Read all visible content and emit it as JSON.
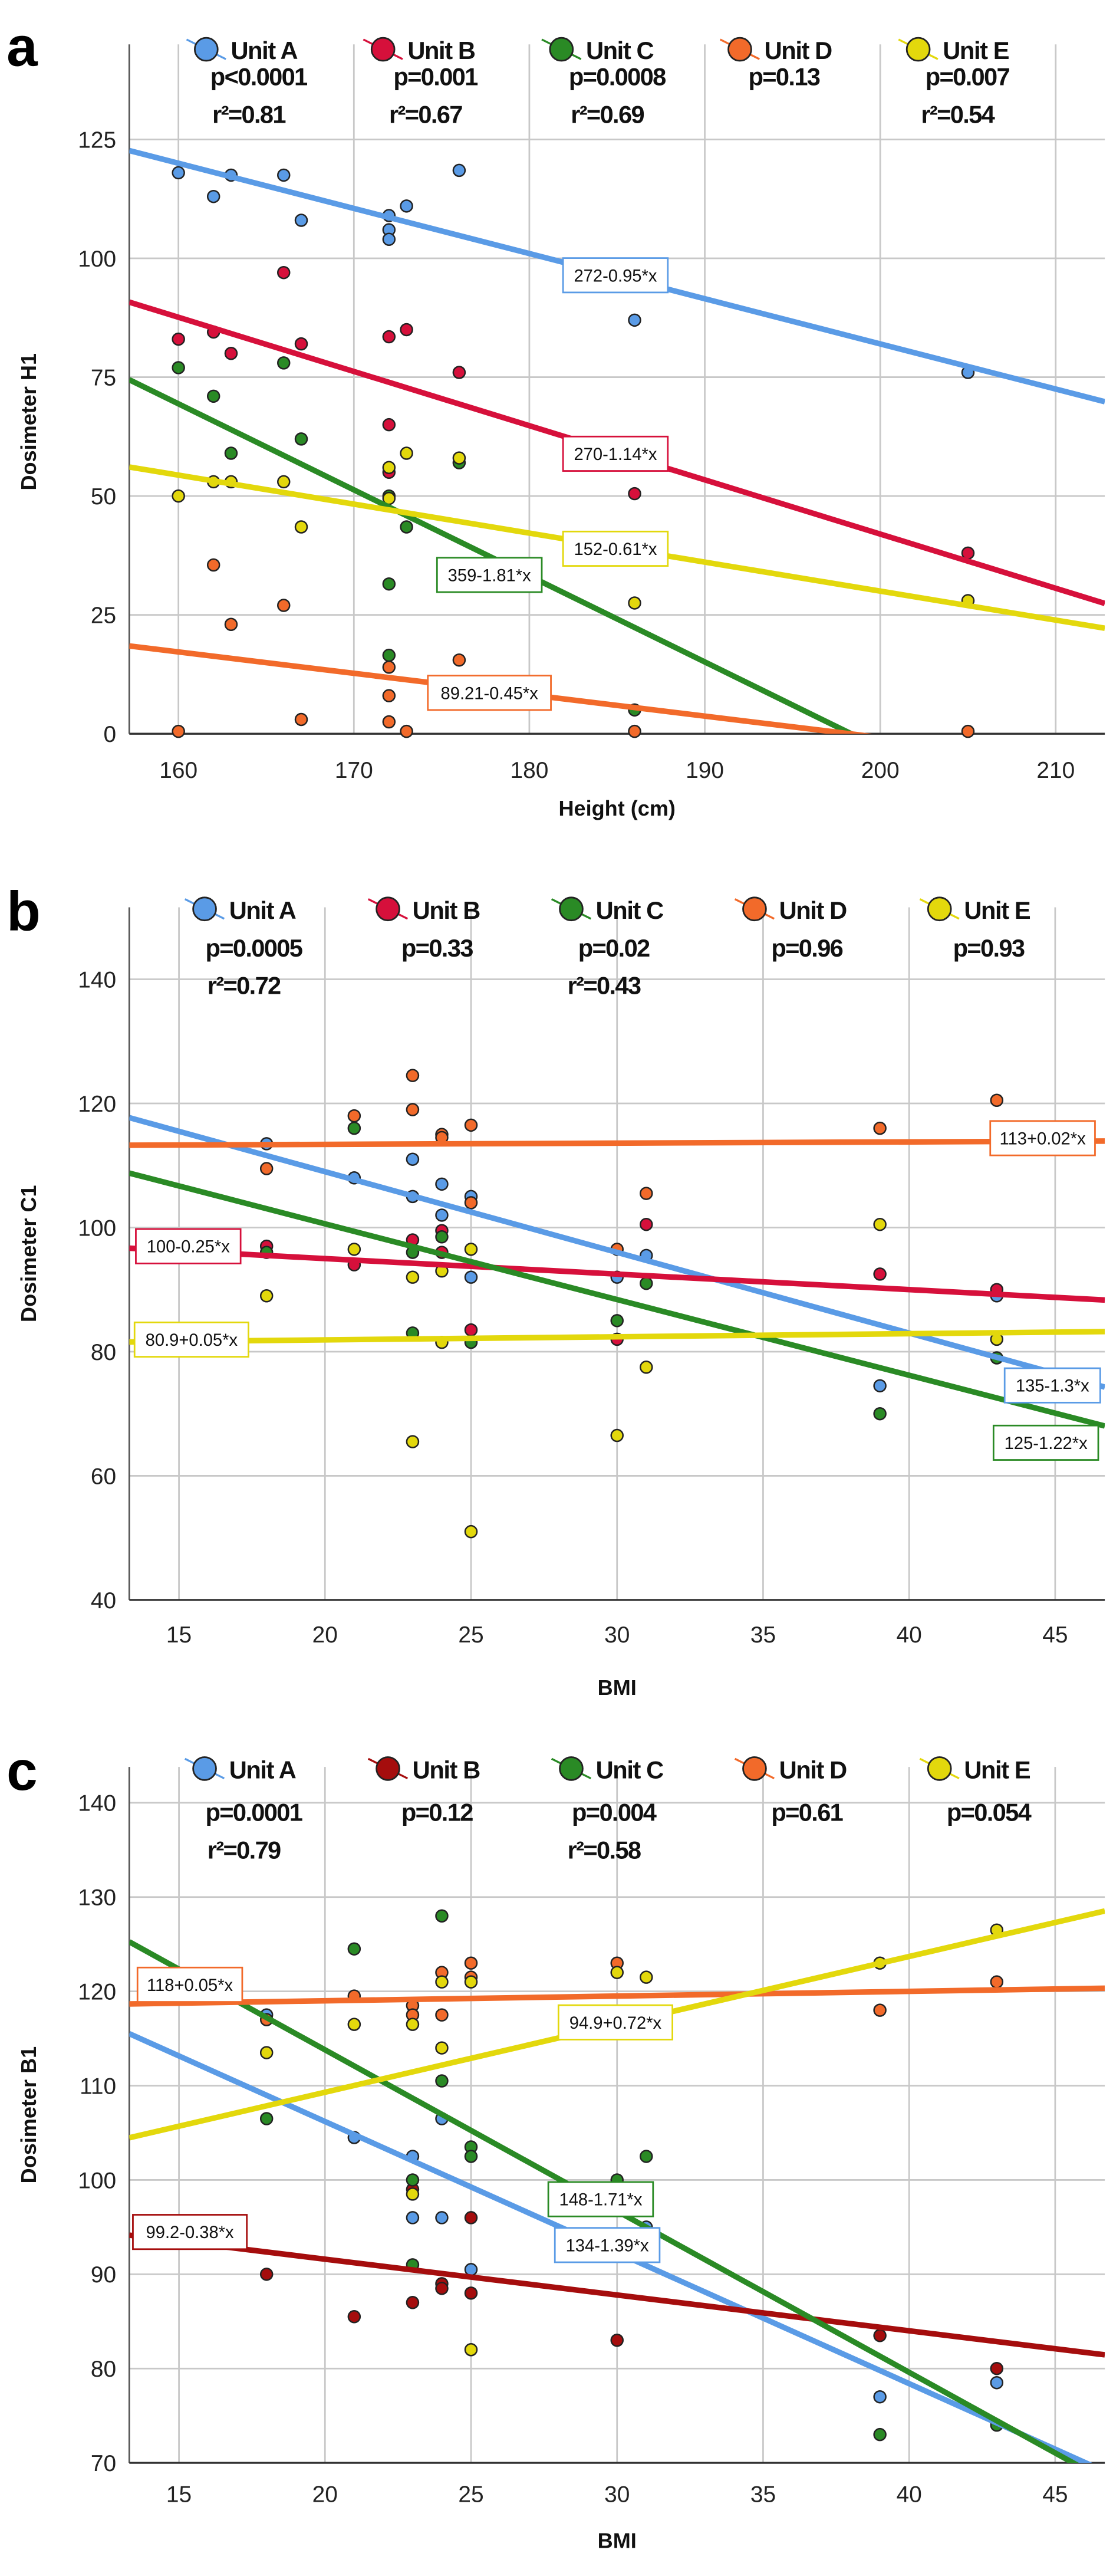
{
  "chart_data": [
    {
      "type": "scatter",
      "panel_label": "a",
      "xlabel": "Height (cm)",
      "ylabel": "Dosimeter H1",
      "xlim": [
        157.2,
        212.8
      ],
      "ylim": [
        0,
        145
      ],
      "xticks": [
        160,
        170,
        180,
        190,
        200,
        210
      ],
      "yticks": [
        0,
        25,
        50,
        75,
        100,
        125
      ],
      "grid": true,
      "legend_position": "top",
      "series": [
        {
          "name": "Unit A",
          "color": "#5a9be6",
          "p": "p<0.0001",
          "r2": "r²=0.81",
          "fit_label": "272-0.95*x",
          "intercept": 272,
          "slope": -0.95,
          "points": [
            [
              160,
              118
            ],
            [
              162,
              113
            ],
            [
              163,
              117.5
            ],
            [
              166,
              117.5
            ],
            [
              167,
              108
            ],
            [
              172,
              109
            ],
            [
              172,
              106
            ],
            [
              172,
              104
            ],
            [
              173,
              111
            ],
            [
              176,
              118.5
            ],
            [
              186,
              87
            ],
            [
              205,
              76
            ]
          ]
        },
        {
          "name": "Unit B",
          "color": "#d6103b",
          "p": "p=0.001",
          "r2": "r²=0.67",
          "fit_label": "270-1.14*x",
          "intercept": 270,
          "slope": -1.14,
          "points": [
            [
              160,
              83
            ],
            [
              162,
              84.5
            ],
            [
              163,
              80
            ],
            [
              166,
              97
            ],
            [
              167,
              82
            ],
            [
              172,
              83.5
            ],
            [
              172,
              65
            ],
            [
              172,
              55
            ],
            [
              173,
              85
            ],
            [
              176,
              76
            ],
            [
              186,
              50.5
            ],
            [
              205,
              38
            ]
          ]
        },
        {
          "name": "Unit C",
          "color": "#2a8a25",
          "p": "p=0.0008",
          "r2": "r²=0.69",
          "fit_label": "359-1.81*x",
          "intercept": 359,
          "slope": -1.81,
          "points": [
            [
              160,
              77
            ],
            [
              162,
              71
            ],
            [
              163,
              59
            ],
            [
              166,
              78
            ],
            [
              167,
              62
            ],
            [
              172,
              50
            ],
            [
              172,
              31.5
            ],
            [
              172,
              16.5
            ],
            [
              173,
              43.5
            ],
            [
              176,
              57
            ],
            [
              186,
              5
            ]
          ]
        },
        {
          "name": "Unit D",
          "color": "#f26a2a",
          "p": "p=0.13",
          "r2": "",
          "fit_label": "89.21-0.45*x",
          "intercept": 89.21,
          "slope": -0.45,
          "points": [
            [
              160,
              0.5
            ],
            [
              162,
              35.5
            ],
            [
              163,
              23
            ],
            [
              166,
              27
            ],
            [
              167,
              3
            ],
            [
              172,
              14
            ],
            [
              172,
              8
            ],
            [
              172,
              2.5
            ],
            [
              173,
              0.5
            ],
            [
              176,
              15.5
            ],
            [
              186,
              0.5
            ],
            [
              205,
              0.5
            ]
          ]
        },
        {
          "name": "Unit E",
          "color": "#e3d80c",
          "p": "p=0.007",
          "r2": "r²=0.54",
          "fit_label": "152-0.61*x",
          "intercept": 152,
          "slope": -0.61,
          "points": [
            [
              160,
              50
            ],
            [
              162,
              53
            ],
            [
              163,
              53
            ],
            [
              166,
              53
            ],
            [
              167,
              43.5
            ],
            [
              172,
              56
            ],
            [
              172,
              49.5
            ],
            [
              173,
              59
            ],
            [
              176,
              58
            ],
            [
              186,
              27.5
            ],
            [
              205,
              28
            ]
          ]
        }
      ]
    },
    {
      "type": "scatter",
      "panel_label": "b",
      "xlabel": "BMI",
      "ylabel": "Dosimeter C1",
      "xlim": [
        13.3,
        46.7
      ],
      "ylim": [
        40,
        151.6
      ],
      "xticks": [
        15,
        20,
        25,
        30,
        35,
        40,
        45
      ],
      "yticks": [
        40,
        60,
        80,
        100,
        120,
        140
      ],
      "grid": true,
      "legend_position": "top",
      "series": [
        {
          "name": "Unit A",
          "color": "#5a9be6",
          "p": "p=0.0005",
          "r2": "r²=0.72",
          "fit_label": "135-1.3*x",
          "intercept": 135,
          "slope": -1.3,
          "points": [
            [
              18,
              113.5
            ],
            [
              21,
              108
            ],
            [
              23,
              111
            ],
            [
              23,
              105
            ],
            [
              24,
              107
            ],
            [
              24,
              102
            ],
            [
              25,
              105
            ],
            [
              25,
              92
            ],
            [
              30,
              92
            ],
            [
              31,
              95.5
            ],
            [
              39,
              74.5
            ],
            [
              43,
              89
            ]
          ]
        },
        {
          "name": "Unit B",
          "color": "#d6103b",
          "p": "p=0.33",
          "r2": "",
          "fit_label": "100-0.25*x",
          "intercept": 100,
          "slope": -0.25,
          "points": [
            [
              18,
              97
            ],
            [
              21,
              94
            ],
            [
              23,
              98
            ],
            [
              24,
              99.5
            ],
            [
              24,
              96
            ],
            [
              25,
              83.5
            ],
            [
              30,
              82
            ],
            [
              31,
              100.5
            ],
            [
              39,
              92.5
            ],
            [
              43,
              90
            ]
          ]
        },
        {
          "name": "Unit C",
          "color": "#2a8a25",
          "p": "p=0.02",
          "r2": "r²=0.43",
          "fit_label": "125-1.22*x",
          "intercept": 125,
          "slope": -1.22,
          "points": [
            [
              18,
              96
            ],
            [
              21,
              116
            ],
            [
              23,
              83
            ],
            [
              23,
              96
            ],
            [
              24,
              98.5
            ],
            [
              25,
              81.5
            ],
            [
              30,
              85
            ],
            [
              31,
              91
            ],
            [
              39,
              70
            ],
            [
              43,
              79
            ]
          ]
        },
        {
          "name": "Unit D",
          "color": "#f26a2a",
          "p": "p=0.96",
          "r2": "",
          "fit_label": "113+0.02*x",
          "intercept": 113,
          "slope": 0.02,
          "points": [
            [
              18,
              109.5
            ],
            [
              21,
              118
            ],
            [
              23,
              124.5
            ],
            [
              23,
              119
            ],
            [
              24,
              115
            ],
            [
              24,
              114.5
            ],
            [
              25,
              116.5
            ],
            [
              25,
              104
            ],
            [
              30,
              96.5
            ],
            [
              31,
              105.5
            ],
            [
              39,
              116
            ],
            [
              43,
              120.5
            ]
          ]
        },
        {
          "name": "Unit E",
          "color": "#e3d80c",
          "p": "p=0.93",
          "r2": "",
          "fit_label": "80.9+0.05*x",
          "intercept": 80.9,
          "slope": 0.05,
          "points": [
            [
              18,
              89
            ],
            [
              21,
              96.5
            ],
            [
              23,
              92
            ],
            [
              23,
              65.5
            ],
            [
              24,
              93
            ],
            [
              24,
              81.5
            ],
            [
              25,
              96.5
            ],
            [
              25,
              51
            ],
            [
              30,
              66.5
            ],
            [
              31,
              77.5
            ],
            [
              39,
              100.5
            ],
            [
              43,
              82
            ]
          ]
        }
      ]
    },
    {
      "type": "scatter",
      "panel_label": "c",
      "xlabel": "BMI",
      "ylabel": "Dosimeter B1",
      "xlim": [
        13.3,
        46.7
      ],
      "ylim": [
        70,
        143.8
      ],
      "xticks": [
        15,
        20,
        25,
        30,
        35,
        40,
        45
      ],
      "yticks": [
        70,
        80,
        90,
        100,
        110,
        120,
        130,
        140
      ],
      "grid": true,
      "legend_position": "top",
      "series": [
        {
          "name": "Unit A",
          "color": "#5a9be6",
          "p": "p=0.0001",
          "r2": "r²=0.79",
          "fit_label": "134-1.39*x",
          "intercept": 134,
          "slope": -1.39,
          "points": [
            [
              18,
              117.5
            ],
            [
              21,
              104.5
            ],
            [
              23,
              102.5
            ],
            [
              23,
              96
            ],
            [
              24,
              106.5
            ],
            [
              24,
              96
            ],
            [
              25,
              90.5
            ],
            [
              31,
              95
            ],
            [
              39,
              77
            ],
            [
              43,
              78.5
            ]
          ]
        },
        {
          "name": "Unit B",
          "color": "#a50d0d",
          "p": "p=0.12",
          "r2": "",
          "fit_label": "99.2-0.38*x",
          "intercept": 99.2,
          "slope": -0.38,
          "points": [
            [
              18,
              90
            ],
            [
              21,
              85.5
            ],
            [
              23,
              87
            ],
            [
              23,
              99
            ],
            [
              24,
              89
            ],
            [
              24,
              88.5
            ],
            [
              25,
              96
            ],
            [
              25,
              88
            ],
            [
              30,
              83
            ],
            [
              39,
              83.5
            ],
            [
              43,
              80
            ]
          ]
        },
        {
          "name": "Unit C",
          "color": "#2a8a25",
          "p": "p=0.004",
          "r2": "r²=0.58",
          "fit_label": "148-1.71*x",
          "intercept": 148,
          "slope": -1.71,
          "points": [
            [
              18,
              106.5
            ],
            [
              21,
              124.5
            ],
            [
              23,
              100
            ],
            [
              23,
              91
            ],
            [
              24,
              128
            ],
            [
              24,
              110.5
            ],
            [
              25,
              103.5
            ],
            [
              25,
              102.5
            ],
            [
              30,
              100
            ],
            [
              31,
              102.5
            ],
            [
              39,
              73
            ],
            [
              43,
              74
            ]
          ]
        },
        {
          "name": "Unit D",
          "color": "#f26a2a",
          "p": "p=0.61",
          "r2": "",
          "fit_label": "118+0.05*x",
          "intercept": 118,
          "slope": 0.05,
          "points": [
            [
              18,
              117
            ],
            [
              21,
              119.5
            ],
            [
              23,
              118.5
            ],
            [
              23,
              117.5
            ],
            [
              24,
              122
            ],
            [
              24,
              117.5
            ],
            [
              25,
              123
            ],
            [
              25,
              121.5
            ],
            [
              30,
              123
            ],
            [
              39,
              118
            ],
            [
              43,
              121
            ]
          ]
        },
        {
          "name": "Unit E",
          "color": "#e3d80c",
          "p": "p=0.054",
          "r2": "",
          "fit_label": "94.9+0.72*x",
          "intercept": 94.9,
          "slope": 0.72,
          "points": [
            [
              18,
              113.5
            ],
            [
              21,
              116.5
            ],
            [
              23,
              116.5
            ],
            [
              23,
              98.5
            ],
            [
              24,
              121
            ],
            [
              24,
              114
            ],
            [
              25,
              121
            ],
            [
              25,
              82
            ],
            [
              30,
              122
            ],
            [
              31,
              121.5
            ],
            [
              39,
              123
            ],
            [
              43,
              126.5
            ]
          ]
        }
      ]
    }
  ]
}
